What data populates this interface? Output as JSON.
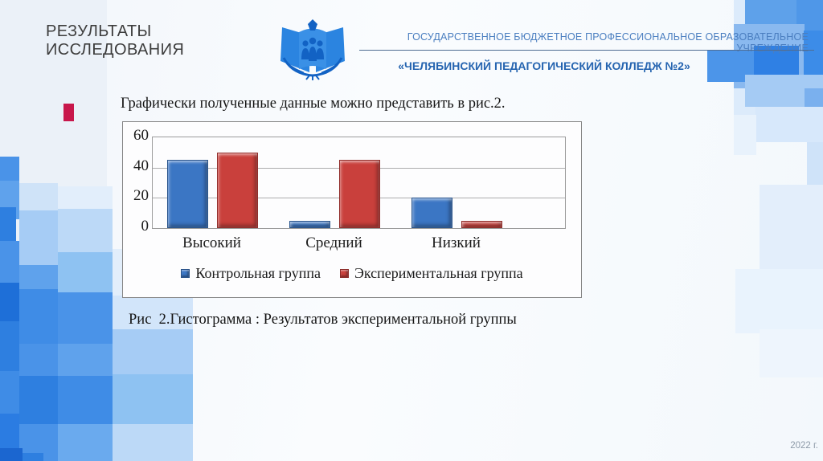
{
  "header": {
    "title": "РЕЗУЛЬТАТЫ\nИССЛЕДОВАНИЯ",
    "organization": "ГОСУДАРСТВЕННОЕ БЮДЖЕТНОЕ ПРОФЕССИОНАЛЬНОЕ ОБРАЗОВАТЕЛЬНОЕ УЧРЕЖДЕНИЕ",
    "college": "«ЧЕЛЯБИНСКИЙ ПЕДАГОГИЧЕСКИЙ КОЛЛЕДЖ №2»",
    "logo": "college-emblem"
  },
  "content": {
    "intro_text": "Графически полученные данные можно представить в рис.2.",
    "caption": "Рис  2.Гистограмма : Результатов экспериментальной группы"
  },
  "footer": {
    "year": "2022 г."
  },
  "theme": {
    "accent_blue": "#2564b0",
    "header_blue": "#4a7ec0",
    "title_gray": "#3d3d3d",
    "bullet_red": "#c8174b",
    "bar_blue": "#3b76c4",
    "bar_red": "#c9403c",
    "mosaic_blue": "#2e7fe0",
    "year_gray": "#8d9aa8"
  },
  "chart_data": {
    "type": "bar",
    "title": "",
    "xlabel": "",
    "ylabel": "",
    "categories": [
      "Высокий",
      "Средний",
      "Низкий"
    ],
    "series": [
      {
        "name": "Контрольная группа",
        "color": "#3b76c4",
        "values": [
          45,
          5,
          20
        ]
      },
      {
        "name": "Экспериментальная группа",
        "color": "#c9403c",
        "values": [
          50,
          45,
          5
        ]
      }
    ],
    "ylim": [
      0,
      60
    ],
    "yticks": [
      0,
      20,
      40,
      60
    ],
    "grid": true,
    "legend_position": "bottom"
  }
}
